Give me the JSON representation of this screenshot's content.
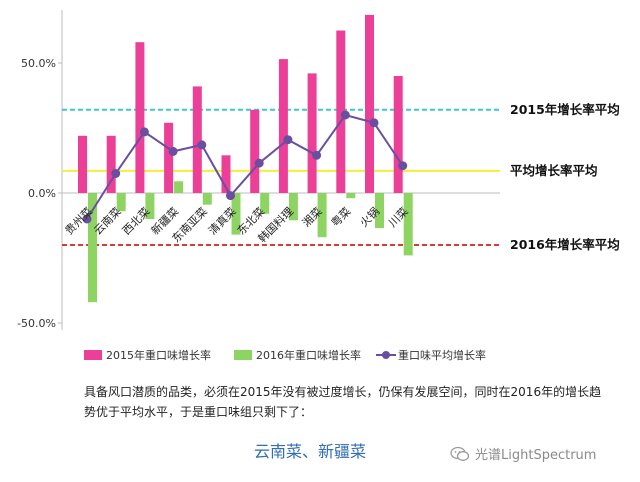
{
  "chart_data": {
    "type": "bar",
    "categories": [
      "贵州菜",
      "云南菜",
      "西北菜",
      "新疆菜",
      "东南亚菜",
      "清真菜",
      "东北菜",
      "韩国料理",
      "湘菜",
      "粤菜",
      "火锅",
      "川菜"
    ],
    "series": [
      {
        "name": "2015年重口味增长率",
        "kind": "bar",
        "color": "#ec3f98",
        "values": [
          22,
          22,
          58,
          27,
          41,
          14.5,
          32,
          51.5,
          46,
          62.5,
          68.5,
          45
        ]
      },
      {
        "name": "2016年重口味增长率",
        "kind": "bar",
        "color": "#8ed462",
        "values": [
          -42,
          -7,
          -10,
          4.5,
          -4.5,
          -16,
          -8,
          -10.5,
          -17,
          -2,
          -13.5,
          -24
        ]
      },
      {
        "name": "重口味平均增长率",
        "kind": "line",
        "color": "#6a4fa0",
        "values": [
          -10,
          7.5,
          23.5,
          16,
          18.5,
          -1,
          11.5,
          20.5,
          14.5,
          30,
          27,
          10.5
        ]
      }
    ],
    "reference_lines": [
      {
        "label": "2015年增长率平均",
        "value": 32,
        "color": "#3fc5d2",
        "style": "dashed"
      },
      {
        "label": "平均增长率平均",
        "value": 8.5,
        "color": "#f4ee3c",
        "style": "solid"
      },
      {
        "label": "2016年增长率平均",
        "value": -20,
        "color": "#d93a3a",
        "style": "dashed"
      }
    ],
    "yticks": [
      "50.0%",
      "0.0%",
      "-50.0%"
    ],
    "ylim": [
      -50,
      70
    ],
    "legend_position": "bottom",
    "title": "",
    "xlabel": "",
    "ylabel": ""
  },
  "caption": "具备风口潜质的品类，必须在2015年没有被过度增长，仍保有发展空间，同时在2016年的增长趋势优于平均水平，于是重口味组只剩下了：",
  "conclusion": "云南菜、新疆菜",
  "watermark": "光谱LightSpectrum"
}
